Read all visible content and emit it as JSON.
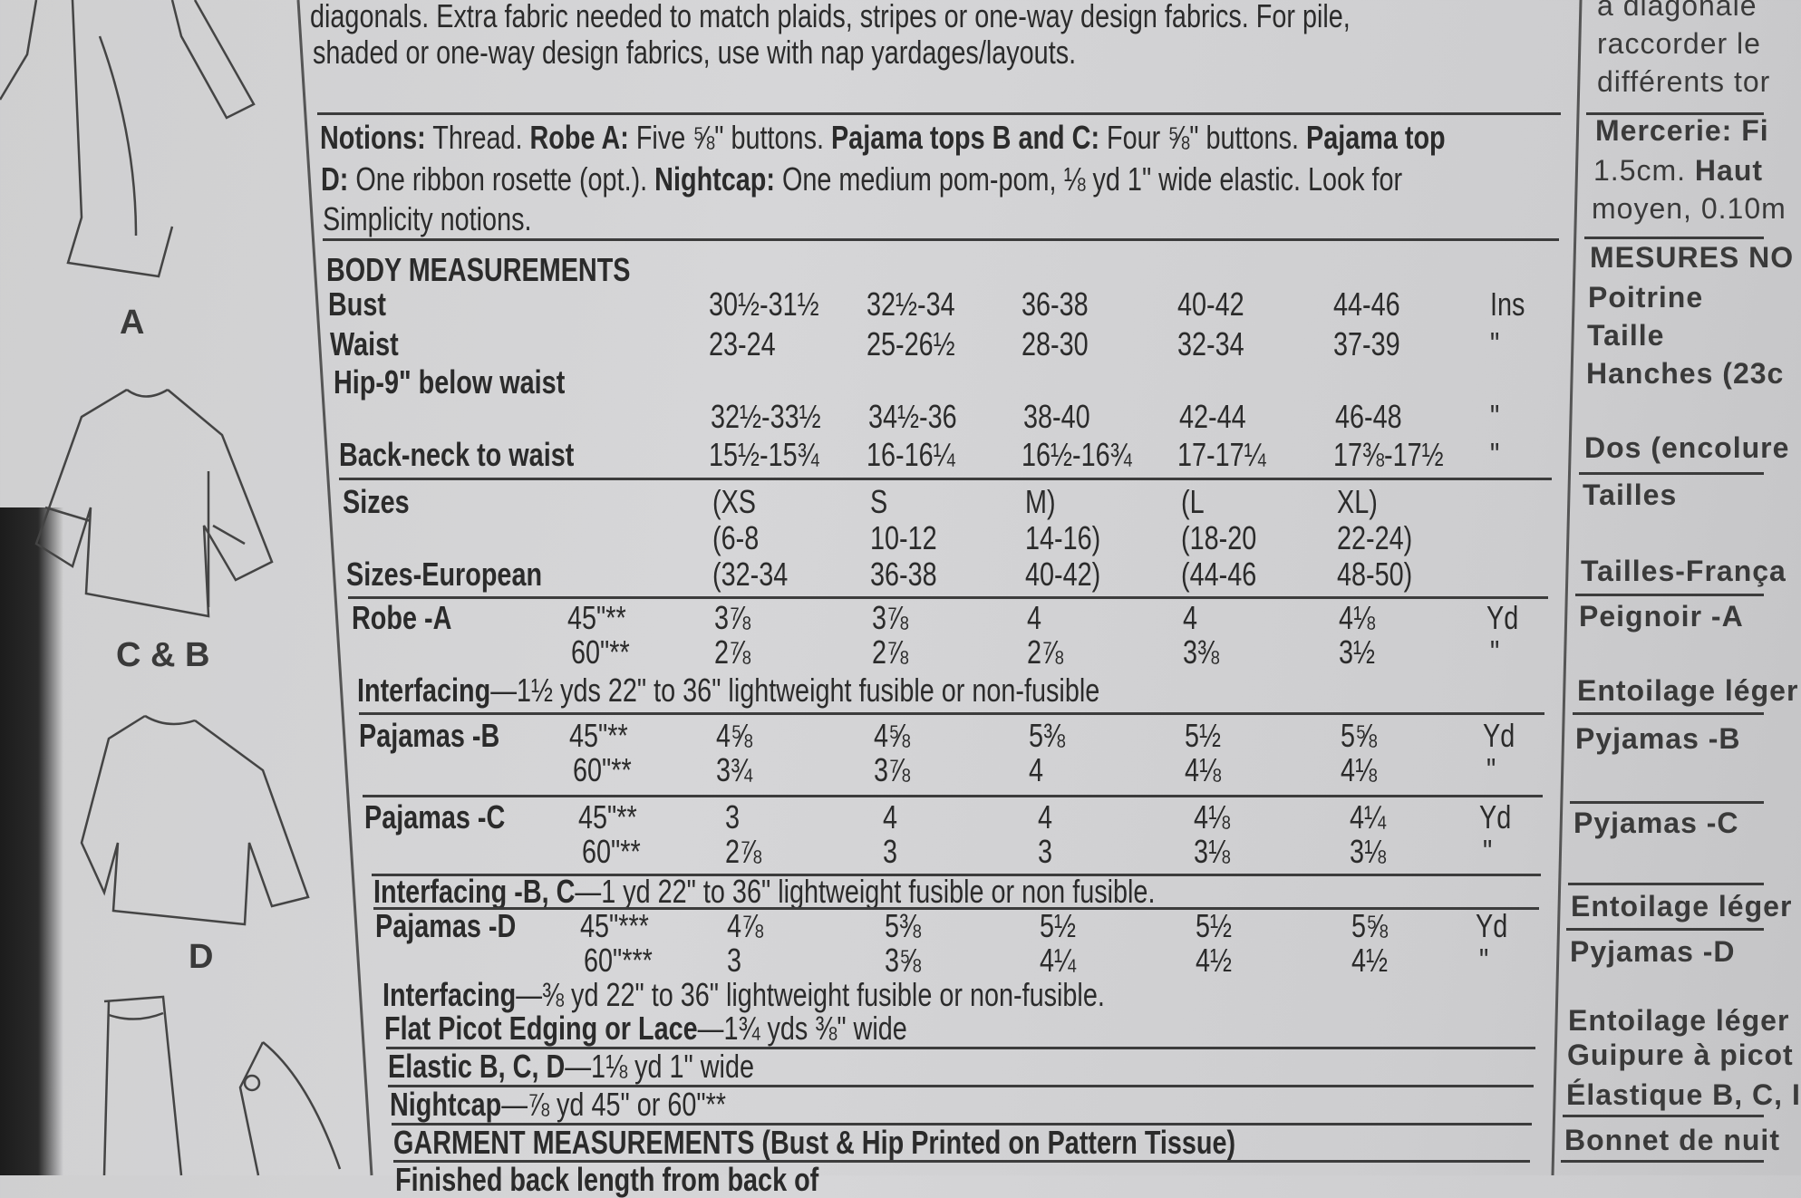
{
  "intro": {
    "line1": "diagonals. Extra fabric needed to match plaids, stripes or one-way design fabrics. For pile,",
    "line2": "shaded or one-way design fabrics, use with nap yardages/layouts."
  },
  "notions": {
    "l1": [
      {
        "text": "Notions:",
        "bold": true
      },
      {
        "text": " Thread. "
      },
      {
        "text": "Robe A:",
        "bold": true
      },
      {
        "text": " Five ⅝\" buttons. "
      },
      {
        "text": "Pajama tops B and C:",
        "bold": true
      },
      {
        "text": " Four ⅝\" buttons. "
      },
      {
        "text": "Pajama top",
        "bold": true
      }
    ],
    "l2": [
      {
        "text": "D:",
        "bold": true
      },
      {
        "text": " One ribbon rosette (opt.). "
      },
      {
        "text": "Nightcap:",
        "bold": true
      },
      {
        "text": " One medium pom-pom, ⅛ yd 1\" wide elastic. Look for"
      }
    ],
    "l3": [
      {
        "text": "Simplicity notions."
      }
    ]
  },
  "body": {
    "title": "BODY MEASUREMENTS",
    "rows": [
      {
        "label": "Bust",
        "values": [
          "30½-31½",
          "32½-34",
          "36-38",
          "40-42",
          "44-46"
        ],
        "unit": "Ins"
      },
      {
        "label": "Waist",
        "values": [
          "23-24",
          "25-26½",
          "28-30",
          "32-34",
          "37-39"
        ],
        "unit": "\""
      },
      {
        "label": "Hip-9\" below waist",
        "values": [
          "32½-33½",
          "34½-36",
          "38-40",
          "42-44",
          "46-48"
        ],
        "unit": "\""
      },
      {
        "label": "Back-neck to waist",
        "values": [
          "15½-15¾",
          "16-16¼",
          "16½-16¾",
          "17-17¼",
          "17⅜-17½"
        ],
        "unit": "\""
      }
    ]
  },
  "sizes": {
    "label": "Sizes",
    "values": [
      "(XS",
      "S",
      "M)",
      "(L",
      "XL)"
    ],
    "values2": [
      "(6-8",
      "10-12",
      "14-16)",
      "(18-20",
      "22-24)"
    ],
    "european_label": "Sizes-European",
    "european": [
      "(32-34",
      "36-38",
      "40-42)",
      "(44-46",
      "48-50)"
    ]
  },
  "yardage": [
    {
      "label": "Robe -A",
      "w1": "45\"**",
      "v1": [
        "3⅞",
        "3⅞",
        "4",
        "4",
        "4⅛"
      ],
      "u1": "Yd",
      "w2": "60\"**",
      "v2": [
        "2⅞",
        "2⅞",
        "2⅞",
        "3⅜",
        "3½"
      ],
      "u2": "\""
    },
    {
      "label": "Pajamas -B",
      "w1": "45\"**",
      "v1": [
        "4⅝",
        "4⅝",
        "5⅜",
        "5½",
        "5⅝"
      ],
      "u1": "Yd",
      "w2": "60\"**",
      "v2": [
        "3¾",
        "3⅞",
        "4",
        "4⅛",
        "4⅛"
      ],
      "u2": "\""
    },
    {
      "label": "Pajamas -C",
      "w1": "45\"**",
      "v1": [
        "3",
        "4",
        "4",
        "4⅛",
        "4¼"
      ],
      "u1": "Yd",
      "w2": "60\"**",
      "v2": [
        "2⅞",
        "3",
        "3",
        "3⅛",
        "3⅛"
      ],
      "u2": "\""
    },
    {
      "label": "Pajamas -D",
      "w1": "45\"***",
      "v1": [
        "4⅞",
        "5⅜",
        "5½",
        "5½",
        "5⅝"
      ],
      "u1": "Yd",
      "w2": "60\"***",
      "v2": [
        "3",
        "3⅝",
        "4¼",
        "4½",
        "4½"
      ],
      "u2": "\""
    }
  ],
  "notes": {
    "interfacing_a": [
      {
        "text": "Interfacing",
        "bold": true
      },
      {
        "text": "—1½ yds  22\" to 36\" lightweight fusible or non-fusible"
      }
    ],
    "interfacing_bc": [
      {
        "text": "Interfacing -B, C",
        "bold": true
      },
      {
        "text": "—1 yd 22\" to 36\" lightweight fusible or non fusible."
      }
    ],
    "interfacing_d": [
      {
        "text": "Interfacing",
        "bold": true
      },
      {
        "text": "—⅜ yd 22\" to 36\" lightweight fusible or non-fusible."
      }
    ],
    "picot": [
      {
        "text": "Flat Picot Edging or Lace",
        "bold": true
      },
      {
        "text": "—1¾ yds  ⅜\" wide"
      }
    ],
    "elastic": [
      {
        "text": "Elastic B, C, D",
        "bold": true
      },
      {
        "text": "—1⅛ yd 1\" wide"
      }
    ],
    "nightcap": [
      {
        "text": "Nightcap",
        "bold": true
      },
      {
        "text": "—⅞ yd 45\" or 60\"**"
      }
    ],
    "garment": [
      {
        "text": "GARMENT MEASUREMENTS (Bust & Hip Printed on Pattern Tissue)",
        "bold": true
      }
    ],
    "finished": [
      {
        "text": "Finished back length from back of",
        "bold": true
      }
    ]
  },
  "french": {
    "l1": "a diagonale",
    "l2": "raccorder le",
    "l3": "différents tor",
    "mercerie": "Mercerie: Fi",
    "l5a": "1.5cm. ",
    "l5b": "Haut",
    "l6": "moyen, 0.10m",
    "mesures": "MESURES NO",
    "poitrine": "Poitrine",
    "taille": "Taille",
    "hanches": "Hanches (23c",
    "dos": "Dos (encolure",
    "tailles": "Tailles",
    "tailles_fr": "Tailles-França",
    "peignoir": "Peignoir -A",
    "entoilage1": "Entoilage léger",
    "pyj_b": "Pyjamas -B",
    "pyj_c": "Pyjamas -C",
    "entoilage2": "Entoilage léger",
    "pyj_d": "Pyjamas -D",
    "entoilage3": "Entoilage léger",
    "guipure": "Guipure à picot",
    "elastique": "Élastique B, C, I",
    "bonnet": "Bonnet de nuit"
  },
  "views": {
    "a": "A",
    "cb": "C & B",
    "d": "D"
  }
}
